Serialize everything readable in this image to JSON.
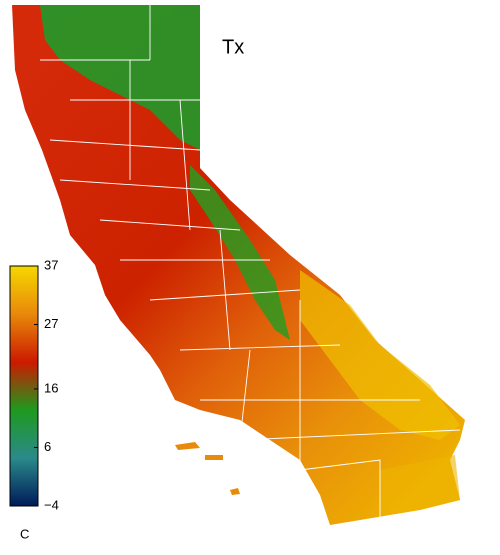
{
  "map": {
    "title": "Tx",
    "colorbar": {
      "range": [
        -4,
        37
      ],
      "ticks": [
        37,
        27,
        16,
        6,
        {
          "value": -4,
          "label": "−4"
        }
      ],
      "unit": "C",
      "colors": [
        "#001a5a",
        "#2a8a8a",
        "#1e9a1e",
        "#cc1a00",
        "#e8890a",
        "#f5d800"
      ]
    }
  }
}
